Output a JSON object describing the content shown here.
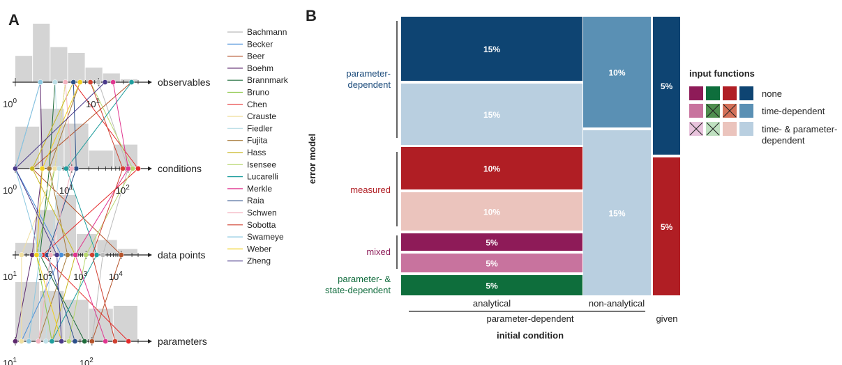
{
  "panels": {
    "a": {
      "label": "A"
    },
    "b": {
      "label": "B"
    }
  },
  "chart_data": [
    {
      "type": "bar",
      "panel": "A",
      "axes": [
        {
          "name": "observables",
          "scale": "log",
          "ticks": [
            "10^0",
            "10^1"
          ],
          "range": [
            1,
            30
          ]
        },
        {
          "name": "conditions",
          "scale": "log",
          "ticks": [
            "10^0",
            "10^1",
            "10^2"
          ],
          "range": [
            1,
            150
          ]
        },
        {
          "name": "data points",
          "scale": "log",
          "ticks": [
            "10^1",
            "10^2",
            "10^3",
            "10^4"
          ],
          "range": [
            10,
            30000
          ]
        },
        {
          "name": "parameters",
          "scale": "log",
          "ticks": [
            "10^1",
            "10^2"
          ],
          "range": [
            10,
            400
          ]
        }
      ],
      "histograms": {
        "observables": [
          0.45,
          1.0,
          0.6,
          0.5,
          0.25,
          0.15,
          0.05
        ],
        "conditions": [
          0.7,
          1.0,
          0.75,
          0.3,
          0.4
        ],
        "data points": [
          0.2,
          0.75,
          1.0,
          0.35,
          0.25,
          0.1
        ],
        "parameters": [
          1.0,
          0.85,
          0.7,
          0.55,
          0.6
        ]
      },
      "series": [
        {
          "name": "Bachmann",
          "color": "#bbbbbb",
          "values": [
            10,
            100,
            3000,
            100
          ]
        },
        {
          "name": "Becker",
          "color": "#4a90d9",
          "values": [
            2,
            1,
            200,
            12
          ]
        },
        {
          "name": "Beer",
          "color": "#b5532a",
          "values": [
            25,
            2,
            10000,
            100
          ]
        },
        {
          "name": "Boehm",
          "color": "#5e2a6e",
          "values": [
            2,
            3,
            30,
            10
          ]
        },
        {
          "name": "Brannmark",
          "color": "#1e6b3a",
          "values": [
            3,
            4,
            50,
            80
          ]
        },
        {
          "name": "Bruno",
          "color": "#8fc74a",
          "values": [
            4,
            5,
            40,
            30
          ]
        },
        {
          "name": "Chen",
          "color": "#e52b2b",
          "values": [
            5,
            150,
            60,
            300
          ]
        },
        {
          "name": "Crauste",
          "color": "#f0dfa0",
          "values": [
            4,
            5,
            15,
            12
          ]
        },
        {
          "name": "Fiedler",
          "color": "#bfe0e8",
          "values": [
            3,
            6,
            100,
            25
          ]
        },
        {
          "name": "Fujita",
          "color": "#a77a3a",
          "values": [
            6,
            4,
            300,
            20
          ]
        },
        {
          "name": "Hass",
          "color": "#c8b820",
          "values": [
            5,
            2,
            500,
            30
          ]
        },
        {
          "name": "Isensee",
          "color": "#b8d870",
          "values": [
            8,
            120,
            1000,
            50
          ]
        },
        {
          "name": "Lucarelli",
          "color": "#1f9e9e",
          "values": [
            25,
            8,
            2000,
            30
          ]
        },
        {
          "name": "Merkle",
          "color": "#e0358f",
          "values": [
            15,
            100,
            500,
            150
          ]
        },
        {
          "name": "Raia",
          "color": "#2b4f8a",
          "values": [
            5,
            12,
            80,
            60
          ]
        },
        {
          "name": "Schwen",
          "color": "#f4b3c0",
          "values": [
            4,
            10,
            100,
            20
          ]
        },
        {
          "name": "Sobotta",
          "color": "#d04030",
          "values": [
            8,
            80,
            1500,
            200
          ]
        },
        {
          "name": "Swameye",
          "color": "#8cc8e0",
          "values": [
            2,
            1,
            50,
            15
          ]
        },
        {
          "name": "Weber",
          "color": "#f0d020",
          "values": [
            6,
            3,
            40,
            40
          ]
        },
        {
          "name": "Zheng",
          "color": "#4a3a8a",
          "values": [
            12,
            1,
            150,
            40
          ]
        }
      ]
    },
    {
      "type": "mosaic",
      "panel": "B",
      "xlabel": "initial condition",
      "ylabel": "error model",
      "x_groups": [
        {
          "label": "parameter-dependent",
          "columns": [
            "analytical",
            "non-analytical"
          ]
        },
        {
          "label": "given",
          "columns": [
            "given"
          ]
        }
      ],
      "y_groups": [
        {
          "label": "parameter-\ndependent",
          "color": "#1a4a7a"
        },
        {
          "label": "measured",
          "color": "#b01e24"
        },
        {
          "label": "mixed",
          "color": "#8e1e5a"
        },
        {
          "label": "parameter- &\nstate-dependent",
          "color": "#0f6b3c"
        }
      ],
      "cells": [
        {
          "column": "analytical",
          "value": "15%",
          "color": "#0e4472",
          "text_color": "#ffffff"
        },
        {
          "column": "analytical",
          "value": "15%",
          "color": "#b9cfe0",
          "text_color": "#ffffff"
        },
        {
          "column": "analytical",
          "value": "10%",
          "color": "#b01e24",
          "text_color": "#ffffff"
        },
        {
          "column": "analytical",
          "value": "10%",
          "color": "#ebc4bd",
          "text_color": "#ffffff"
        },
        {
          "column": "analytical",
          "value": "5%",
          "color": "#8e1b58",
          "text_color": "#ffffff"
        },
        {
          "column": "analytical",
          "value": "5%",
          "color": "#c8739e",
          "text_color": "#ffffff"
        },
        {
          "column": "analytical",
          "value": "5%",
          "color": "#0e6e3c",
          "text_color": "#ffffff"
        },
        {
          "column": "non-analytical",
          "value": "10%",
          "color": "#5a90b4",
          "text_color": "#ffffff"
        },
        {
          "column": "non-analytical",
          "value": "15%",
          "color": "#b9cfe0",
          "text_color": "#ffffff"
        },
        {
          "column": "given",
          "value": "5%",
          "color": "#0e4472",
          "text_color": "#ffffff"
        },
        {
          "column": "given",
          "value": "5%",
          "color": "#b01e24",
          "text_color": "#ffffff"
        }
      ],
      "legend": {
        "title": "input functions",
        "rows": [
          {
            "label": "none",
            "swatches": [
              {
                "color": "#8e1b58",
                "crossed": false
              },
              {
                "color": "#0e6e3c",
                "crossed": false
              },
              {
                "color": "#b01e24",
                "crossed": false
              },
              {
                "color": "#0e4472",
                "crossed": false
              }
            ]
          },
          {
            "label": "time-dependent",
            "swatches": [
              {
                "color": "#c8739e",
                "crossed": false
              },
              {
                "color": "#4f8e4f",
                "crossed": true
              },
              {
                "color": "#d47058",
                "crossed": true
              },
              {
                "color": "#5a90b4",
                "crossed": false
              }
            ]
          },
          {
            "label": "time- & parameter-\ndependent",
            "swatches": [
              {
                "color": "#e8c3dc",
                "crossed": true
              },
              {
                "color": "#bfe0c0",
                "crossed": true
              },
              {
                "color": "#ebc4bd",
                "crossed": false
              },
              {
                "color": "#b9cfe0",
                "crossed": false
              }
            ]
          }
        ]
      }
    }
  ]
}
